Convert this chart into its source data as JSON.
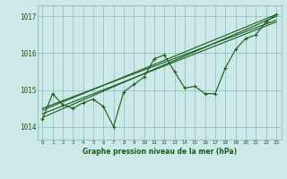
{
  "bg_color": "#cce8e8",
  "grid_color": "#88bbbb",
  "line_color": "#1a5c1a",
  "marker_color": "#1a5c1a",
  "title": "Graphe pression niveau de la mer (hPa)",
  "title_color": "#1a5c1a",
  "ylabel_ticks": [
    1014,
    1015,
    1016,
    1017
  ],
  "xlim": [
    -0.5,
    23.5
  ],
  "ylim": [
    1013.65,
    1017.3
  ],
  "hours": [
    0,
    1,
    2,
    3,
    4,
    5,
    6,
    7,
    8,
    9,
    10,
    11,
    12,
    13,
    14,
    15,
    16,
    17,
    18,
    19,
    20,
    21,
    22,
    23
  ],
  "line1": [
    1014.2,
    1014.9,
    1014.6,
    1014.5,
    1014.65,
    1014.75,
    1014.55,
    1014.0,
    1014.95,
    1015.15,
    1015.35,
    1015.85,
    1015.95,
    1015.5,
    1015.05,
    1015.1,
    1014.9,
    1014.9,
    1015.6,
    1016.1,
    1016.4,
    1016.5,
    1016.85,
    1017.05
  ],
  "line2_x": [
    0,
    23
  ],
  "line2_y": [
    1014.25,
    1017.0
  ],
  "line3_x": [
    0,
    23
  ],
  "line3_y": [
    1014.35,
    1016.85
  ],
  "line4_x": [
    0,
    23
  ],
  "line4_y": [
    1014.45,
    1017.05
  ],
  "line5_x": [
    0,
    23
  ],
  "line5_y": [
    1014.5,
    1016.9
  ]
}
